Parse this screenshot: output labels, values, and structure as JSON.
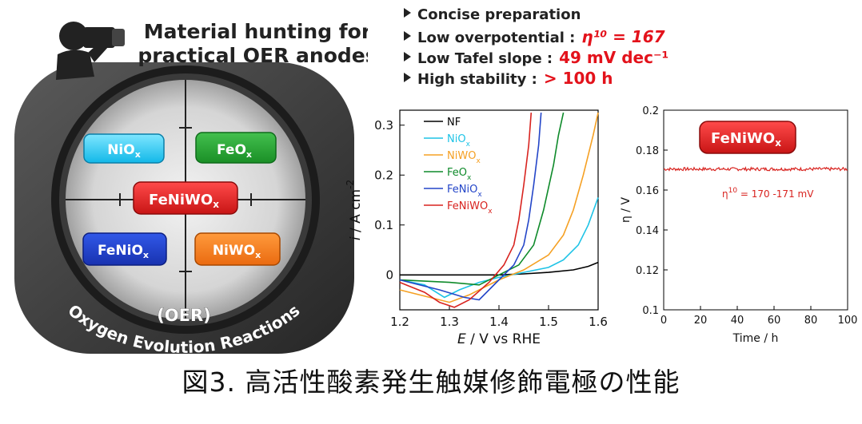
{
  "graphic": {
    "title_lines": [
      "Material hunting for",
      "practical OER anodes"
    ],
    "lens_labels": {
      "nio": "NiO",
      "feo": "FeO",
      "center": "FeNiWO",
      "fenio": "FeNiO",
      "niwo": "NiWO",
      "subscript": "x"
    },
    "arc_text_1": "Oxygen Evolution Reactions",
    "arc_text_2": "(OER)"
  },
  "highlights": {
    "items": [
      {
        "label": "Concise preparation",
        "value": ""
      },
      {
        "label": "Low overpotential :",
        "value": "η¹⁰ = 167"
      },
      {
        "label": "Low Tafel slope :",
        "value": "49 mV dec⁻¹"
      },
      {
        "label": "High stability :",
        "value": "> 100 h"
      }
    ]
  },
  "colors": {
    "NF": "#000000",
    "NiOx": "#1ec3e6",
    "NiWOx": "#f5a023",
    "FeOx": "#0e8a2a",
    "FeNiOx": "#2345c8",
    "FeNiWOx": "#d8231f",
    "badge": "#d81b1b"
  },
  "chart_data": [
    {
      "type": "line",
      "xlabel_italic": "E",
      "xlabel_rest": " / V vs RHE",
      "ylabel_italic": "i",
      "ylabel_rest": " / A cm",
      "ylabel_exp": "-2",
      "xlim": [
        1.2,
        1.6
      ],
      "ylim": [
        -0.07,
        0.33
      ],
      "xticks": [
        "1.2",
        "1.3",
        "1.4",
        "1.5",
        "1.6"
      ],
      "yticks": [
        "0",
        "0.1",
        "0.2",
        "0.3"
      ],
      "legend_position": "top-left",
      "series": [
        {
          "name": "NF",
          "sub": "",
          "color_key": "NF",
          "x": [
            1.2,
            1.3,
            1.4,
            1.45,
            1.5,
            1.55,
            1.58,
            1.6
          ],
          "y": [
            0.0,
            0.0,
            0.0,
            0.002,
            0.005,
            0.01,
            0.017,
            0.025
          ]
        },
        {
          "name": "NiO",
          "sub": "x",
          "color_key": "NiOx",
          "x": [
            1.2,
            1.25,
            1.29,
            1.32,
            1.36,
            1.4,
            1.45,
            1.5,
            1.53,
            1.56,
            1.58,
            1.6
          ],
          "y": [
            -0.01,
            -0.02,
            -0.045,
            -0.03,
            -0.015,
            -0.005,
            0.005,
            0.015,
            0.03,
            0.06,
            0.1,
            0.155
          ]
        },
        {
          "name": "NiWO",
          "sub": "x",
          "color_key": "NiWOx",
          "x": [
            1.2,
            1.26,
            1.3,
            1.34,
            1.4,
            1.45,
            1.5,
            1.53,
            1.55,
            1.57,
            1.59,
            1.6
          ],
          "y": [
            -0.03,
            -0.045,
            -0.055,
            -0.04,
            -0.01,
            0.01,
            0.04,
            0.08,
            0.13,
            0.2,
            0.28,
            0.325
          ]
        },
        {
          "name": "FeO",
          "sub": "x",
          "color_key": "FeOx",
          "x": [
            1.2,
            1.3,
            1.36,
            1.4,
            1.44,
            1.47,
            1.49,
            1.51,
            1.52,
            1.53
          ],
          "y": [
            -0.01,
            -0.015,
            -0.02,
            0.0,
            0.02,
            0.06,
            0.13,
            0.22,
            0.28,
            0.325
          ]
        },
        {
          "name": "FeNiO",
          "sub": "x",
          "color_key": "FeNiOx",
          "x": [
            1.2,
            1.28,
            1.33,
            1.36,
            1.4,
            1.43,
            1.45,
            1.46,
            1.47,
            1.48,
            1.485
          ],
          "y": [
            -0.01,
            -0.03,
            -0.045,
            -0.05,
            -0.01,
            0.02,
            0.06,
            0.11,
            0.18,
            0.26,
            0.325
          ]
        },
        {
          "name": "FeNiWO",
          "sub": "x",
          "color_key": "FeNiWOx",
          "x": [
            1.2,
            1.25,
            1.28,
            1.31,
            1.34,
            1.38,
            1.41,
            1.43,
            1.44,
            1.45,
            1.46,
            1.465
          ],
          "y": [
            -0.015,
            -0.035,
            -0.055,
            -0.065,
            -0.05,
            -0.015,
            0.02,
            0.06,
            0.11,
            0.18,
            0.26,
            0.325
          ]
        }
      ]
    },
    {
      "type": "line",
      "xlabel": "Time / h",
      "ylabel": "η / V",
      "xlim": [
        0,
        100
      ],
      "ylim": [
        0.1,
        0.2
      ],
      "xticks": [
        "0",
        "20",
        "40",
        "60",
        "80",
        "100"
      ],
      "yticks": [
        "0.1",
        "0.12",
        "0.14",
        "0.16",
        "0.18",
        "0.2"
      ],
      "badge": {
        "text": "FeNiWO",
        "sub": "x"
      },
      "annotation": {
        "eta": "η",
        "sup": "10",
        "text": " = 170 -171 mV"
      },
      "series": [
        {
          "name": "FeNiWOx",
          "color_key": "FeNiWOx",
          "x": [
            0,
            100
          ],
          "y": [
            0.1705,
            0.1705
          ],
          "noise": 0.0008
        }
      ]
    }
  ],
  "caption": "図3. 高活性酸素発生触媒修飾電極の性能"
}
